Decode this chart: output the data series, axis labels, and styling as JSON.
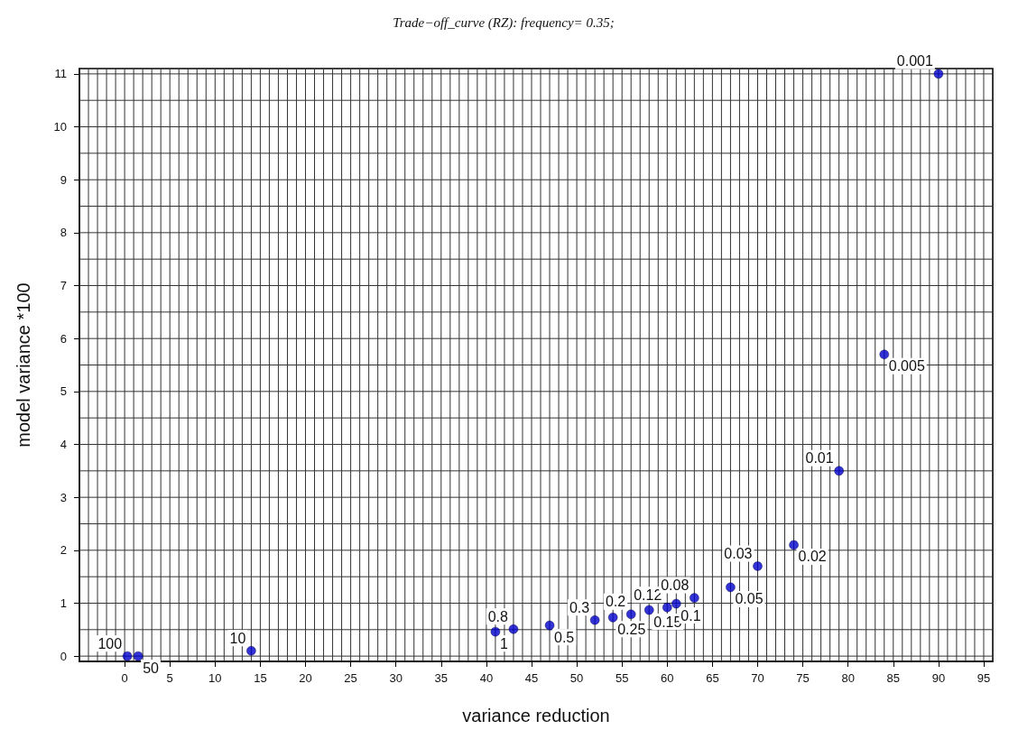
{
  "chart_data": {
    "type": "scatter",
    "title": "Trade−off_curve (RZ): frequency= 0.35;",
    "xlabel": "variance reduction",
    "ylabel": "model variance *100",
    "x": [
      0.3,
      1.5,
      14,
      41,
      43,
      47,
      52,
      54,
      56,
      58,
      60,
      61,
      63,
      67,
      70,
      74,
      79,
      84,
      90
    ],
    "series": [
      {
        "color": "#0000cc",
        "values": [
          0,
          0,
          0.1,
          0.46,
          0.51,
          0.58,
          0.68,
          0.73,
          0.79,
          0.87,
          0.92,
          0.99,
          1.1,
          1.3,
          1.7,
          2.1,
          3.5,
          5.7,
          11
        ]
      }
    ],
    "annotations": [
      {
        "text": "100",
        "x": 0.3,
        "y": 0
      },
      {
        "text": "50",
        "x": 1.5,
        "y": 0
      },
      {
        "text": "10",
        "x": 14,
        "y": 0.1
      },
      {
        "text": "1",
        "x": 41,
        "y": 0.46
      },
      {
        "text": "0.8",
        "x": 43,
        "y": 0.51
      },
      {
        "text": "0.5",
        "x": 47,
        "y": 0.58
      },
      {
        "text": "0.3",
        "x": 52,
        "y": 0.68
      },
      {
        "text": "0.25",
        "x": 54,
        "y": 0.73
      },
      {
        "text": "0.2",
        "x": 56,
        "y": 0.79
      },
      {
        "text": "0.15",
        "x": 58,
        "y": 0.87
      },
      {
        "text": "0.12",
        "x": 60,
        "y": 0.92
      },
      {
        "text": "0.1",
        "x": 61,
        "y": 0.99
      },
      {
        "text": "0.08",
        "x": 63,
        "y": 1.1
      },
      {
        "text": "0.05",
        "x": 67,
        "y": 1.3
      },
      {
        "text": "0.03",
        "x": 70,
        "y": 1.7
      },
      {
        "text": "0.02",
        "x": 74,
        "y": 2.1
      },
      {
        "text": "0.01",
        "x": 79,
        "y": 3.5
      },
      {
        "text": "0.005",
        "x": 84,
        "y": 5.7
      },
      {
        "text": "0.001",
        "x": 90,
        "y": 11
      }
    ],
    "xlim": [
      -5,
      96
    ],
    "ylim": [
      -0.1,
      11.1
    ],
    "xticks": [
      0,
      5,
      10,
      15,
      20,
      25,
      30,
      35,
      40,
      45,
      50,
      55,
      60,
      65,
      70,
      75,
      80,
      85,
      90,
      95
    ],
    "yticks": [
      0,
      1,
      2,
      3,
      4,
      5,
      6,
      7,
      8,
      9,
      10,
      11
    ],
    "grid": true,
    "marker": "circle"
  }
}
